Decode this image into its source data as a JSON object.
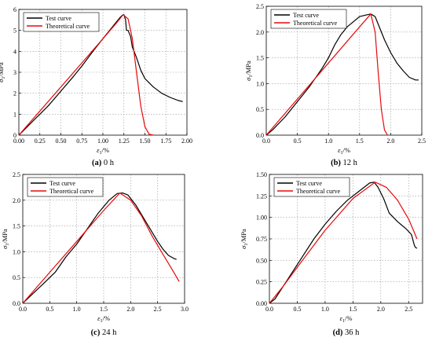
{
  "chart_data": [
    {
      "type": "line",
      "caption_letter": "(a)",
      "caption_text": " 0 h",
      "xlabel_main": "ε",
      "xlabel_sub": "1",
      "xlabel_unit": "/%",
      "ylabel_main": "σ",
      "ylabel_sub": "1",
      "ylabel_unit": "/MPa",
      "xlim": [
        0,
        2.0
      ],
      "ylim": [
        0,
        6
      ],
      "xticks": [
        0,
        0.25,
        0.5,
        0.75,
        1.0,
        1.25,
        1.5,
        1.75,
        2.0
      ],
      "xtick_labels": [
        "0.00",
        "0.25",
        "0.50",
        "0.75",
        "1.00",
        "1.25",
        "1.50",
        "1.75",
        "2.00"
      ],
      "yticks": [
        0,
        1,
        2,
        3,
        4,
        5,
        6
      ],
      "ytick_labels": [
        "0",
        "1",
        "2",
        "3",
        "4",
        "5",
        "6"
      ],
      "grid": true,
      "legend_position": "top-left",
      "series": [
        {
          "name": "Test curve",
          "color": "#000000",
          "x": [
            0,
            0.05,
            0.15,
            0.25,
            0.35,
            0.5,
            0.65,
            0.75,
            0.9,
            1.0,
            1.1,
            1.2,
            1.23,
            1.25,
            1.27,
            1.28,
            1.3,
            1.33,
            1.35,
            1.4,
            1.45,
            1.5,
            1.55,
            1.6,
            1.7,
            1.8,
            1.9,
            1.95
          ],
          "y": [
            0,
            0.2,
            0.6,
            1.0,
            1.4,
            2.1,
            2.8,
            3.3,
            4.1,
            4.6,
            5.1,
            5.6,
            5.72,
            5.75,
            5.5,
            5.0,
            5.0,
            4.7,
            4.2,
            3.7,
            3.1,
            2.7,
            2.5,
            2.3,
            2.0,
            1.8,
            1.65,
            1.6
          ]
        },
        {
          "name": "Theoretical curve",
          "color": "#e8090b",
          "x": [
            0,
            0.25,
            0.5,
            0.75,
            1.0,
            1.15,
            1.24,
            1.3,
            1.35,
            1.4,
            1.45,
            1.5,
            1.55,
            1.6
          ],
          "y": [
            0,
            1.15,
            2.3,
            3.45,
            4.6,
            5.3,
            5.75,
            5.55,
            4.6,
            3.0,
            1.4,
            0.4,
            0.05,
            0
          ]
        }
      ]
    },
    {
      "type": "line",
      "caption_letter": "(b)",
      "caption_text": " 12 h",
      "xlabel_main": "ε",
      "xlabel_sub": "1",
      "xlabel_unit": "/%",
      "ylabel_main": "σ",
      "ylabel_sub": "1",
      "ylabel_unit": "/MPa",
      "xlim": [
        0,
        2.5
      ],
      "ylim": [
        0,
        2.5
      ],
      "xticks": [
        0,
        0.5,
        1.0,
        1.5,
        2.0,
        2.5
      ],
      "xtick_labels": [
        "0.0",
        "0.5",
        "1.0",
        "1.5",
        "2.0",
        "2.5"
      ],
      "yticks": [
        0,
        0.5,
        1.0,
        1.5,
        2.0,
        2.5
      ],
      "ytick_labels": [
        "0.0",
        "0.5",
        "1.0",
        "1.5",
        "2.0",
        "2.5"
      ],
      "grid": true,
      "legend_position": "top-left",
      "series": [
        {
          "name": "Test curve",
          "color": "#000000",
          "x": [
            0,
            0.1,
            0.3,
            0.5,
            0.7,
            0.9,
            1.0,
            1.1,
            1.2,
            1.3,
            1.4,
            1.5,
            1.6,
            1.68,
            1.75,
            1.8,
            1.9,
            2.0,
            2.1,
            2.2,
            2.3,
            2.4,
            2.45
          ],
          "y": [
            0,
            0.1,
            0.35,
            0.65,
            0.95,
            1.3,
            1.5,
            1.75,
            1.95,
            2.1,
            2.2,
            2.3,
            2.33,
            2.35,
            2.3,
            2.15,
            1.85,
            1.6,
            1.4,
            1.25,
            1.12,
            1.07,
            1.07
          ]
        },
        {
          "name": "Theoretical curve",
          "color": "#e8090b",
          "x": [
            0,
            0.5,
            1.0,
            1.5,
            1.68,
            1.75,
            1.8,
            1.85,
            1.9,
            1.95
          ],
          "y": [
            0,
            0.7,
            1.4,
            2.1,
            2.35,
            2.0,
            1.2,
            0.5,
            0.1,
            0
          ]
        }
      ]
    },
    {
      "type": "line",
      "caption_letter": "(c)",
      "caption_text": " 24 h",
      "xlabel_main": "ε",
      "xlabel_sub": "1",
      "xlabel_unit": "/%",
      "ylabel_main": "σ",
      "ylabel_sub": "1",
      "ylabel_unit": "/MPa",
      "xlim": [
        0,
        3.0
      ],
      "ylim": [
        0,
        2.5
      ],
      "xticks": [
        0,
        0.5,
        1.0,
        1.5,
        2.0,
        2.5,
        3.0
      ],
      "xtick_labels": [
        "0.0",
        "0.5",
        "1.0",
        "1.5",
        "2.0",
        "2.5",
        "3.0"
      ],
      "yticks": [
        0,
        0.5,
        1.0,
        1.5,
        2.0,
        2.5
      ],
      "ytick_labels": [
        "0.0",
        "0.5",
        "1.0",
        "1.5",
        "2.0",
        "2.5"
      ],
      "grid": true,
      "legend_position": "top-left",
      "series": [
        {
          "name": "Test curve",
          "color": "#000000",
          "x": [
            0,
            0.2,
            0.4,
            0.6,
            0.8,
            1.0,
            1.2,
            1.4,
            1.6,
            1.75,
            1.85,
            1.95,
            2.1,
            2.3,
            2.5,
            2.6,
            2.7,
            2.8,
            2.85
          ],
          "y": [
            0,
            0.2,
            0.4,
            0.6,
            0.9,
            1.15,
            1.45,
            1.75,
            2.0,
            2.13,
            2.14,
            2.1,
            1.9,
            1.55,
            1.2,
            1.05,
            0.93,
            0.87,
            0.85
          ]
        },
        {
          "name": "Theoretical curve",
          "color": "#e8090b",
          "x": [
            0,
            0.5,
            1.0,
            1.5,
            1.8,
            2.0,
            2.2,
            2.4,
            2.6,
            2.8,
            2.9
          ],
          "y": [
            0,
            0.6,
            1.2,
            1.8,
            2.14,
            2.0,
            1.7,
            1.3,
            0.95,
            0.6,
            0.42
          ]
        }
      ]
    },
    {
      "type": "line",
      "caption_letter": "(d)",
      "caption_text": " 36 h",
      "xlabel_main": "ε",
      "xlabel_sub": "1",
      "xlabel_unit": "/%",
      "ylabel_main": "σ",
      "ylabel_sub": "1",
      "ylabel_unit": "/MPa",
      "xlim": [
        0,
        2.75
      ],
      "ylim": [
        0,
        1.5
      ],
      "xticks": [
        0,
        0.5,
        1.0,
        1.5,
        2.0,
        2.5
      ],
      "xtick_labels": [
        "0.0",
        "0.5",
        "1.0",
        "1.5",
        "2.0",
        "2.5"
      ],
      "yticks": [
        0,
        0.25,
        0.5,
        0.75,
        1.0,
        1.25,
        1.5
      ],
      "ytick_labels": [
        "0.00",
        "0.25",
        "0.50",
        "0.75",
        "1.00",
        "1.25",
        "1.50"
      ],
      "grid": true,
      "legend_position": "top-left",
      "series": [
        {
          "name": "Test curve",
          "color": "#000000",
          "x": [
            0,
            0.1,
            0.2,
            0.4,
            0.6,
            0.8,
            1.0,
            1.2,
            1.4,
            1.6,
            1.8,
            1.88,
            1.95,
            2.05,
            2.15,
            2.3,
            2.45,
            2.55,
            2.6,
            2.62,
            2.65
          ],
          "y": [
            0,
            0.05,
            0.15,
            0.35,
            0.55,
            0.75,
            0.92,
            1.07,
            1.2,
            1.3,
            1.4,
            1.41,
            1.35,
            1.22,
            1.05,
            0.95,
            0.87,
            0.8,
            0.68,
            0.65,
            0.64
          ]
        },
        {
          "name": "Theoretical curve",
          "color": "#e8090b",
          "x": [
            0,
            0.25,
            0.5,
            1.0,
            1.5,
            1.9,
            2.1,
            2.3,
            2.5,
            2.65
          ],
          "y": [
            0,
            0.2,
            0.42,
            0.85,
            1.22,
            1.41,
            1.35,
            1.2,
            0.98,
            0.75
          ]
        }
      ]
    }
  ]
}
